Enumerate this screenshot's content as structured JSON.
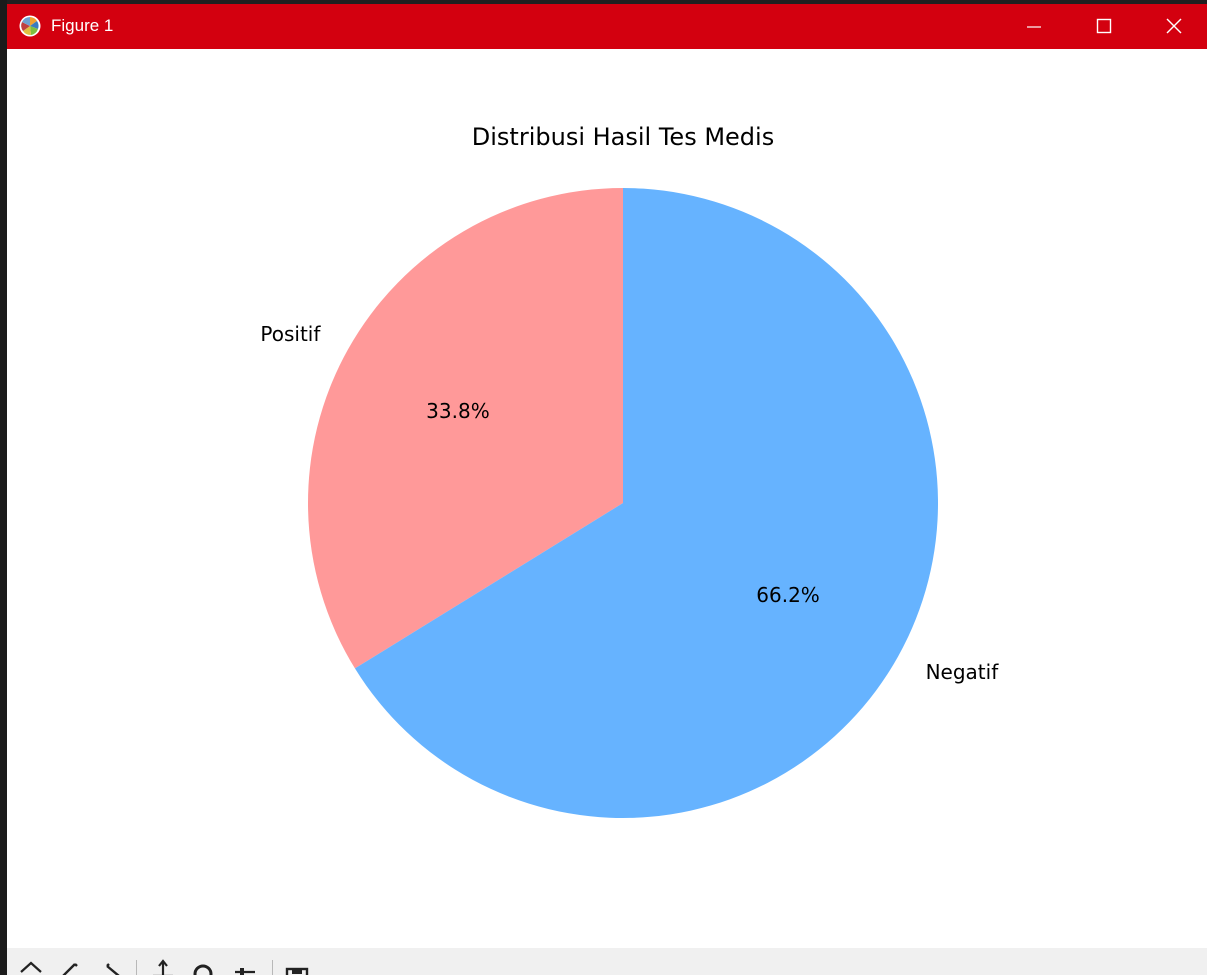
{
  "window": {
    "title": "Figure 1",
    "titlebar_color": "#d3000f",
    "icons": [
      "matplotlib-logo-icon",
      "minimize-icon",
      "maximize-icon",
      "close-icon"
    ]
  },
  "toolbar": {
    "buttons": [
      "home-icon",
      "back-icon",
      "forward-icon",
      "pan-icon",
      "zoom-icon",
      "configure-subplots-icon",
      "save-icon"
    ]
  },
  "chart_data": {
    "type": "pie",
    "title": "Distribusi Hasil Tes Medis",
    "start_angle_deg": 90,
    "direction": "counterclockwise",
    "slices": [
      {
        "label": "Positif",
        "value": 33.8,
        "pct_label": "33.8%",
        "color": "#ff9999"
      },
      {
        "label": "Negatif",
        "value": 66.2,
        "pct_label": "66.2%",
        "color": "#66b3ff"
      }
    ]
  }
}
